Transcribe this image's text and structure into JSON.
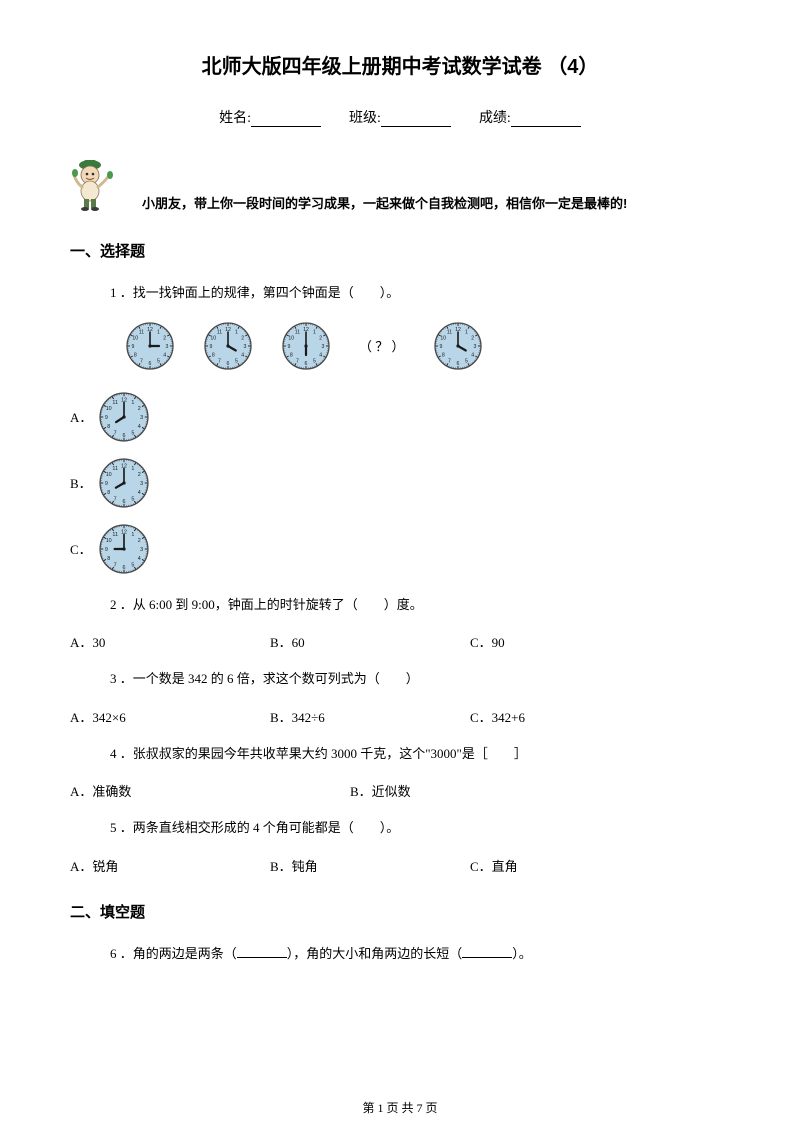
{
  "title": "北师大版四年级上册期中考试数学试卷 （4）",
  "info": {
    "name_label": "姓名:",
    "class_label": "班级:",
    "score_label": "成绩:"
  },
  "encouragement": "小朋友，带上你一段时间的学习成果，一起来做个自我检测吧，相信你一定是最棒的!",
  "section1": "一、选择题",
  "q1": {
    "text": "1 ．找一找钟面上的规律，第四个钟面是（　　）。",
    "qmark": "（ ？ ）",
    "clocks": [
      {
        "hour": 3,
        "minute": 0
      },
      {
        "hour": 4,
        "minute": 0
      },
      {
        "hour": 6,
        "minute": 0
      },
      {
        "hour": 4,
        "minute": 0
      }
    ],
    "opts": [
      {
        "label": "A．",
        "hour": 7.9,
        "minute": 0
      },
      {
        "label": "B．",
        "hour": 8,
        "minute": 0
      },
      {
        "label": "C．",
        "hour": 9,
        "minute": 0
      }
    ]
  },
  "q2": {
    "text": "2 ．从 6:00 到 9:00，钟面上的时针旋转了（　　）度。",
    "a": "A．30",
    "b": "B．60",
    "c": "C．90"
  },
  "q3": {
    "text": "3 ．一个数是 342 的 6 倍，求这个数可列式为（　　）",
    "a": "A．342×6",
    "b": "B．342÷6",
    "c": "C．342+6"
  },
  "q4": {
    "text": "4 ．张叔叔家的果园今年共收苹果大约 3000 千克，这个\"3000\"是［　　］",
    "a": "A．准确数",
    "b": "B．近似数"
  },
  "q5": {
    "text": "5 ．两条直线相交形成的 4 个角可能都是（　　）。",
    "a": "A．锐角",
    "b": "B．钝角",
    "c": "C．直角"
  },
  "section2": "二、填空题",
  "q6": {
    "p1": "6 ．角的两边是两条（",
    "p2": "），角的大小和角两边的长短（",
    "p3": "）。"
  },
  "footer": "第 1 页 共 7 页",
  "clock_style": {
    "face_fill": "#b9d5e8",
    "face_stroke": "#4a4a4a",
    "tick_color": "#1a1a1a",
    "hand_color": "#1a1a1a",
    "number_color": "#1a1a1a",
    "number_fontsize": 5.2
  },
  "mascot_colors": {
    "hat": "#3a7a3a",
    "head": "#f0d8b8",
    "shirt": "#f5e8d0",
    "pants": "#5a7a4a",
    "shoe": "#3a3a3a",
    "leaf": "#4a9a4a"
  }
}
